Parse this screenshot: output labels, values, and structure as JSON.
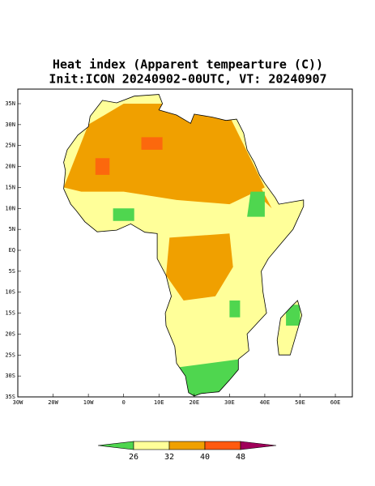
{
  "title": "Heat index (Apparent tempearture (C))",
  "subtitle": "Init:ICON 20240902-00UTC, VT: 20240907",
  "map": {
    "lat_labels": [
      "35N",
      "30N",
      "25N",
      "20N",
      "15N",
      "10N",
      "5N",
      "EQ",
      "5S",
      "10S",
      "15S",
      "20S",
      "25S",
      "30S",
      "35S"
    ],
    "lon_labels": [
      "30W",
      "20W",
      "10W",
      "0",
      "10E",
      "20E",
      "30E",
      "40E",
      "50E",
      "60E"
    ]
  },
  "colorbar": {
    "levels": [
      26,
      32,
      40,
      48
    ],
    "colors": [
      "#4fd64f",
      "#ffff99",
      "#f0a000",
      "#ff5a10",
      "#a0005a"
    ]
  }
}
